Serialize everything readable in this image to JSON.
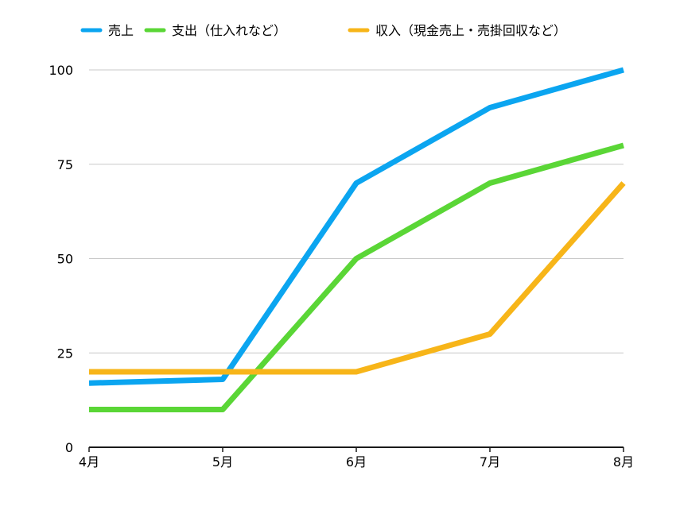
{
  "chart_data": {
    "type": "line",
    "categories": [
      "4月",
      "5月",
      "6月",
      "7月",
      "8月"
    ],
    "series": [
      {
        "name": "売上",
        "color": "#0ba5f0",
        "values": [
          17,
          18,
          70,
          90,
          100
        ]
      },
      {
        "name": "支出（仕入れなど）",
        "color": "#5ad636",
        "values": [
          10,
          10,
          50,
          70,
          80
        ]
      },
      {
        "name": "収入（現金売上・売掛回収など）",
        "color": "#f7b519",
        "values": [
          20,
          20,
          20,
          30,
          70
        ]
      }
    ],
    "yticks": [
      "0",
      "25",
      "50",
      "75",
      "100"
    ],
    "ylim": [
      0,
      100
    ],
    "grid": true,
    "legend_position": "top"
  }
}
